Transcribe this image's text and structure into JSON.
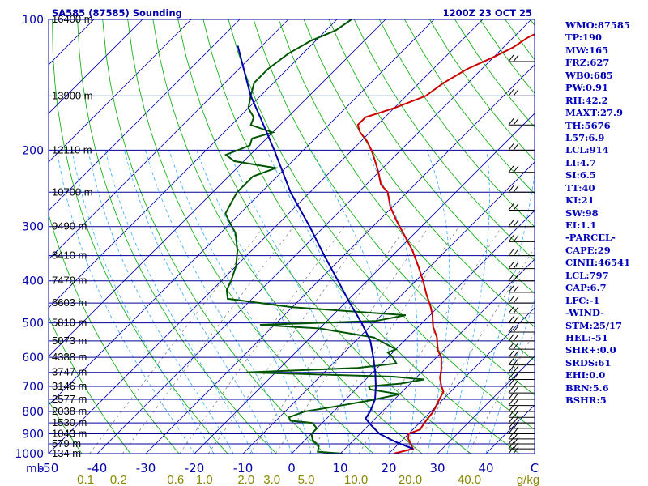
{
  "header": {
    "station": "SA585 (87585) Sounding",
    "time": "1200Z 23 OCT 25"
  },
  "colors": {
    "frame": "#0000aa",
    "isobar": "#000099",
    "isotherm": "#0000aa",
    "dry_adiabat": "#00aa00",
    "moist_adiabat": "#33aaff",
    "mixing_ratio": "#777777",
    "temperature": "#cc0000",
    "dewpoint": "#005500",
    "parcel": "#0000aa",
    "mixing_label": "#888800",
    "index_text": "#0000bb"
  },
  "indices": [
    "WMO:87585",
    "TP:190",
    "MW:165",
    "FRZ:627",
    "WB0:685",
    "PW:0.91",
    "RH:42.2",
    "MAXT:27.9",
    "TH:5676",
    "L57:6.9",
    "LCL:914",
    "LI:4.7",
    "SI:6.5",
    "TT:40",
    "KI:21",
    "SW:98",
    "EI:1.1",
    "-PARCEL-",
    "CAPE:29",
    "CINH:46541",
    "LCL:797",
    "CAP:6.7",
    "LFC:-1",
    "-WIND-",
    "STM:25/17",
    "HEL:-51",
    "SHR+:0.0",
    "SRDS:61",
    "EHI:0.0",
    "BRN:5.6",
    "BSHR:5"
  ],
  "chart_data": {
    "type": "skew-t",
    "y_axis": "pressure",
    "y_scale": "log",
    "pressure_range": [
      1000,
      100
    ],
    "temperature_range": [
      -50,
      50
    ],
    "pressure_labels": [
      "100",
      "200",
      "300",
      "400",
      "500",
      "600",
      "700",
      "800",
      "900",
      "1000"
    ],
    "temperature_ticks": [
      "-50",
      "-40",
      "-30",
      "-20",
      "-10",
      "0",
      "10",
      "20",
      "30",
      "40",
      "C"
    ],
    "mb_unit": "mb",
    "mixing_ratio_labels": [
      "0.1",
      "0.2",
      "0.6",
      "1.0",
      "2.0",
      "3.0",
      "5.0",
      "10.0",
      "20.0",
      "40.0"
    ],
    "mixing_unit": "g/kg",
    "height_labels": [
      {
        "p": 100,
        "text": "16400 m"
      },
      {
        "p": 150,
        "text": "13900 m"
      },
      {
        "p": 200,
        "text": "12110 m"
      },
      {
        "p": 250,
        "text": "10700 m"
      },
      {
        "p": 300,
        "text": "9490 m"
      },
      {
        "p": 350,
        "text": "8410 m"
      },
      {
        "p": 400,
        "text": "7470 m"
      },
      {
        "p": 450,
        "text": "6603 m"
      },
      {
        "p": 500,
        "text": "5810 m"
      },
      {
        "p": 550,
        "text": "5073 m"
      },
      {
        "p": 600,
        "text": "4388 m"
      },
      {
        "p": 650,
        "text": "3747 m"
      },
      {
        "p": 700,
        "text": "3146 m"
      },
      {
        "p": 750,
        "text": "2577 m"
      },
      {
        "p": 800,
        "text": "2038 m"
      },
      {
        "p": 850,
        "text": "1530 m"
      },
      {
        "p": 900,
        "text": "1043 m"
      },
      {
        "p": 950,
        "text": "579 m"
      },
      {
        "p": 1000,
        "text": "134 m"
      }
    ],
    "series": [
      {
        "name": "Temperature",
        "points": [
          [
            1000,
            21.0
          ],
          [
            975,
            24.0
          ],
          [
            950,
            22.5
          ],
          [
            925,
            21.0
          ],
          [
            900,
            20.0
          ],
          [
            880,
            21.5
          ],
          [
            850,
            21.0
          ],
          [
            800,
            20.5
          ],
          [
            760,
            19.5
          ],
          [
            720,
            18.5
          ],
          [
            700,
            17.0
          ],
          [
            670,
            15.0
          ],
          [
            640,
            13.5
          ],
          [
            600,
            11.0
          ],
          [
            580,
            9.0
          ],
          [
            560,
            7.5
          ],
          [
            540,
            6.0
          ],
          [
            510,
            3.0
          ],
          [
            480,
            0.5
          ],
          [
            460,
            -1.5
          ],
          [
            430,
            -5.0
          ],
          [
            400,
            -8.5
          ],
          [
            370,
            -12.5
          ],
          [
            340,
            -17.0
          ],
          [
            310,
            -22.5
          ],
          [
            290,
            -26.5
          ],
          [
            270,
            -30.5
          ],
          [
            250,
            -34.0
          ],
          [
            240,
            -37.0
          ],
          [
            225,
            -40.0
          ],
          [
            212,
            -43.0
          ],
          [
            200,
            -46.0
          ],
          [
            190,
            -49.0
          ],
          [
            182,
            -52.0
          ],
          [
            175,
            -54.0
          ],
          [
            168,
            -54.0
          ],
          [
            160,
            -50.0
          ],
          [
            150,
            -46.0
          ],
          [
            140,
            -45.0
          ],
          [
            130,
            -43.0
          ],
          [
            122,
            -40.0
          ],
          [
            116,
            -38.0
          ],
          [
            110,
            -37.0
          ],
          [
            100,
            -33.0
          ]
        ]
      },
      {
        "name": "Dewpoint",
        "points": [
          [
            1000,
            10.5
          ],
          [
            990,
            5.0
          ],
          [
            960,
            4.0
          ],
          [
            930,
            1.5
          ],
          [
            900,
            0.0
          ],
          [
            875,
            0.0
          ],
          [
            850,
            -2.0
          ],
          [
            840,
            -7.0
          ],
          [
            825,
            -8.0
          ],
          [
            800,
            -6.0
          ],
          [
            780,
            -1.0
          ],
          [
            755,
            5.0
          ],
          [
            730,
            10.0
          ],
          [
            712,
            3.0
          ],
          [
            700,
            2.0
          ],
          [
            690,
            8.0
          ],
          [
            675,
            12.0
          ],
          [
            665,
            5.0
          ],
          [
            650,
            -26.0
          ],
          [
            635,
            -4.0
          ],
          [
            620,
            3.0
          ],
          [
            600,
            1.0
          ],
          [
            585,
            -1.0
          ],
          [
            575,
            0.0
          ],
          [
            560,
            -3.0
          ],
          [
            540,
            -7.0
          ],
          [
            515,
            -20.0
          ],
          [
            505,
            -33.0
          ],
          [
            495,
            -10.0
          ],
          [
            480,
            -5.0
          ],
          [
            460,
            -30.0
          ],
          [
            440,
            -45.0
          ],
          [
            420,
            -47.0
          ],
          [
            400,
            -48.0
          ],
          [
            370,
            -50.0
          ],
          [
            340,
            -53.0
          ],
          [
            310,
            -57.0
          ],
          [
            295,
            -60.0
          ],
          [
            280,
            -63.0
          ],
          [
            265,
            -64.0
          ],
          [
            250,
            -65.0
          ],
          [
            230,
            -65.0
          ],
          [
            220,
            -62.0
          ],
          [
            212,
            -72.0
          ],
          [
            205,
            -75.0
          ],
          [
            195,
            -72.0
          ],
          [
            188,
            -73.0
          ],
          [
            182,
            -70.0
          ],
          [
            175,
            -76.0
          ],
          [
            168,
            -77.0
          ],
          [
            160,
            -80.0
          ],
          [
            150,
            -82.0
          ],
          [
            140,
            -84.0
          ],
          [
            130,
            -84.0
          ],
          [
            120,
            -83.0
          ],
          [
            112,
            -81.0
          ],
          [
            106,
            -78.0
          ],
          [
            100,
            -77.0
          ]
        ]
      },
      {
        "name": "Parcel",
        "points": [
          [
            975,
            24.0
          ],
          [
            940,
            19.0
          ],
          [
            900,
            14.0
          ],
          [
            860,
            10.5
          ],
          [
            830,
            8.0
          ],
          [
            800,
            7.5
          ],
          [
            750,
            6.0
          ],
          [
            700,
            3.5
          ],
          [
            650,
            0.5
          ],
          [
            600,
            -3.0
          ],
          [
            550,
            -7.0
          ],
          [
            500,
            -12.5
          ],
          [
            450,
            -19.0
          ],
          [
            400,
            -26.0
          ],
          [
            350,
            -34.0
          ],
          [
            300,
            -43.0
          ],
          [
            250,
            -54.0
          ],
          [
            200,
            -66.0
          ],
          [
            170,
            -75.0
          ],
          [
            150,
            -82.0
          ],
          [
            130,
            -89.0
          ],
          [
            115,
            -95.0
          ]
        ]
      }
    ],
    "grid": true
  }
}
